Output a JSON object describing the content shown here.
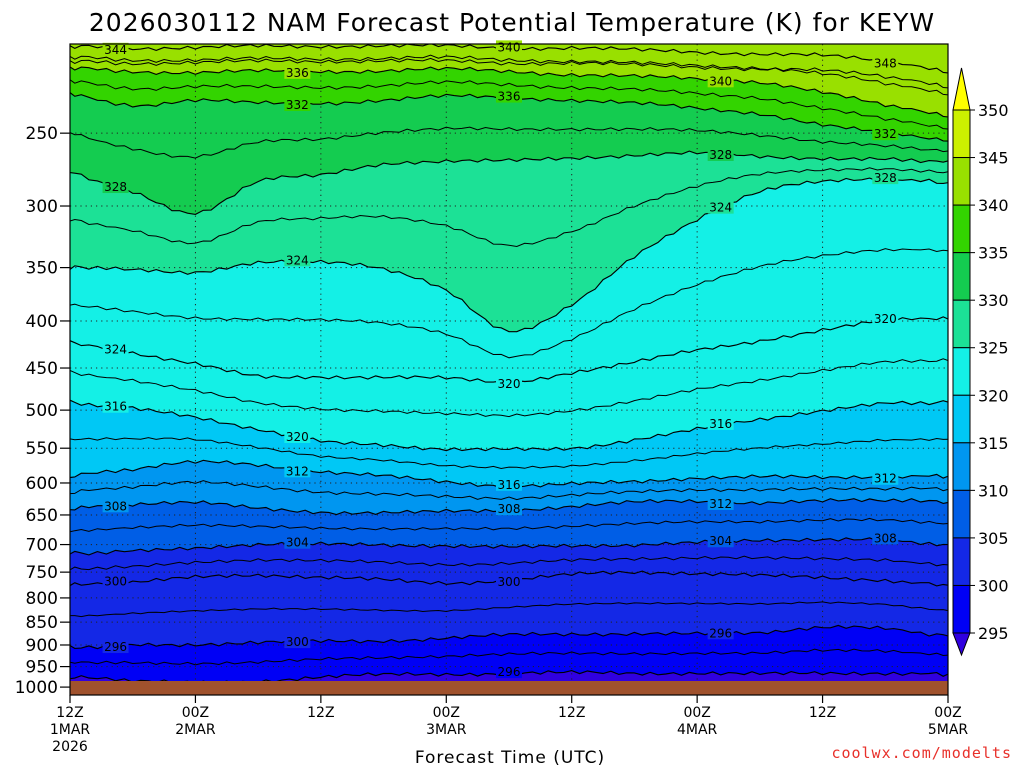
{
  "chart_data": {
    "type": "heatmap",
    "title": "2026030112 NAM Forecast Potential Temperature (K) for KEYW",
    "xlabel": "Forecast Time (UTC)",
    "ylabel": "",
    "units": "K",
    "y_ticks": [
      250,
      300,
      350,
      400,
      450,
      500,
      550,
      600,
      650,
      700,
      750,
      800,
      850,
      900,
      950,
      1000
    ],
    "ylim": [
      1020,
      200
    ],
    "y_scale": "log",
    "x_ticks": [
      {
        "hour": 0,
        "line1": "12Z",
        "line2": "1MAR",
        "line3": "2026"
      },
      {
        "hour": 12,
        "line1": "00Z",
        "line2": "2MAR",
        "line3": ""
      },
      {
        "hour": 24,
        "line1": "12Z",
        "line2": "",
        "line3": ""
      },
      {
        "hour": 36,
        "line1": "00Z",
        "line2": "3MAR",
        "line3": ""
      },
      {
        "hour": 48,
        "line1": "12Z",
        "line2": "",
        "line3": ""
      },
      {
        "hour": 60,
        "line1": "00Z",
        "line2": "4MAR",
        "line3": ""
      },
      {
        "hour": 72,
        "line1": "12Z",
        "line2": "",
        "line3": ""
      },
      {
        "hour": 84,
        "line1": "00Z",
        "line2": "5MAR",
        "line3": ""
      }
    ],
    "xlim": [
      0,
      84
    ],
    "grid": true,
    "colorbar": {
      "levels": [
        350,
        345,
        340,
        335,
        330,
        325,
        320,
        315,
        310,
        305,
        300,
        295
      ],
      "colors": [
        "#ffff00",
        "#ccf000",
        "#99e000",
        "#33d400",
        "#14cc50",
        "#1ce196",
        "#14f0e6",
        "#00c8f5",
        "#0096f0",
        "#005ee6",
        "#1428e6",
        "#0000f5",
        "#3000e0"
      ]
    },
    "series": [
      {
        "level": 296,
        "values": [
          975,
          985,
          990,
          985,
          975,
          970,
          968,
          966,
          965,
          966,
          965,
          968,
          966,
          965,
          968
        ]
      },
      {
        "level": 300,
        "values": [
          905,
          900,
          898,
          895,
          892,
          890,
          885,
          878,
          875,
          875,
          876,
          872,
          860,
          865,
          880
        ]
      },
      {
        "level": 304,
        "values": [
          775,
          770,
          760,
          755,
          760,
          765,
          770,
          765,
          755,
          750,
          752,
          757,
          760,
          765,
          775
        ]
      },
      {
        "level": 308,
        "values": [
          715,
          712,
          705,
          700,
          700,
          700,
          702,
          705,
          702,
          700,
          697,
          693,
          690,
          692,
          700
        ]
      },
      {
        "level": 312,
        "values": [
          640,
          632,
          630,
          640,
          645,
          646,
          645,
          642,
          636,
          630,
          628,
          630,
          628,
          627,
          630
        ]
      },
      {
        "level": 316,
        "values": [
          590,
          580,
          570,
          573,
          583,
          590,
          598,
          604,
          602,
          598,
          592,
          591,
          592,
          590,
          590
        ]
      },
      {
        "level": 320,
        "values": [
          490,
          498,
          508,
          525,
          541,
          545,
          551,
          552,
          550,
          538,
          525,
          512,
          500,
          492,
          490
        ]
      },
      {
        "level": 324,
        "values": [
          422,
          433,
          445,
          460,
          460,
          460,
          462,
          466,
          455,
          444,
          430,
          420,
          410,
          400,
          398
        ]
      },
      {
        "level": 328,
        "values": [
          350,
          352,
          355,
          345,
          345,
          352,
          370,
          410,
          385,
          340,
          310,
          290,
          282,
          280,
          283
        ]
      },
      {
        "level": 332,
        "values": [
          275,
          290,
          305,
          282,
          278,
          270,
          268,
          268,
          266,
          264,
          263,
          265,
          266,
          267,
          268
        ]
      },
      {
        "level": 336,
        "values": [
          226,
          233,
          230,
          232,
          232,
          230,
          228,
          229,
          230,
          232,
          235,
          238,
          245,
          250,
          255
        ]
      },
      {
        "level": 340,
        "values": [
          212,
          214,
          215,
          214,
          214,
          214,
          213,
          214,
          216,
          217,
          218,
          220,
          226,
          233,
          240
        ]
      },
      {
        "level": 344,
        "values": [
          201,
          202,
          202,
          201,
          201,
          201,
          201,
          202,
          202,
          203,
          204,
          205,
          206,
          209,
          215
        ]
      }
    ],
    "contour_label_texts": [
      "344",
      "340",
      "348",
      "336",
      "340",
      "336",
      "332",
      "332",
      "328",
      "328",
      "328",
      "324",
      "324",
      "324",
      "320",
      "320",
      "320",
      "316",
      "316",
      "316",
      "312",
      "312",
      "312",
      "308",
      "308",
      "308",
      "304",
      "304",
      "300",
      "300",
      "300",
      "296",
      "296",
      "296"
    ]
  },
  "footer": {
    "credit": "coolwx.com/modelts"
  },
  "colors": {
    "ground": "#a0522d",
    "dotted_grid": "#222222"
  }
}
